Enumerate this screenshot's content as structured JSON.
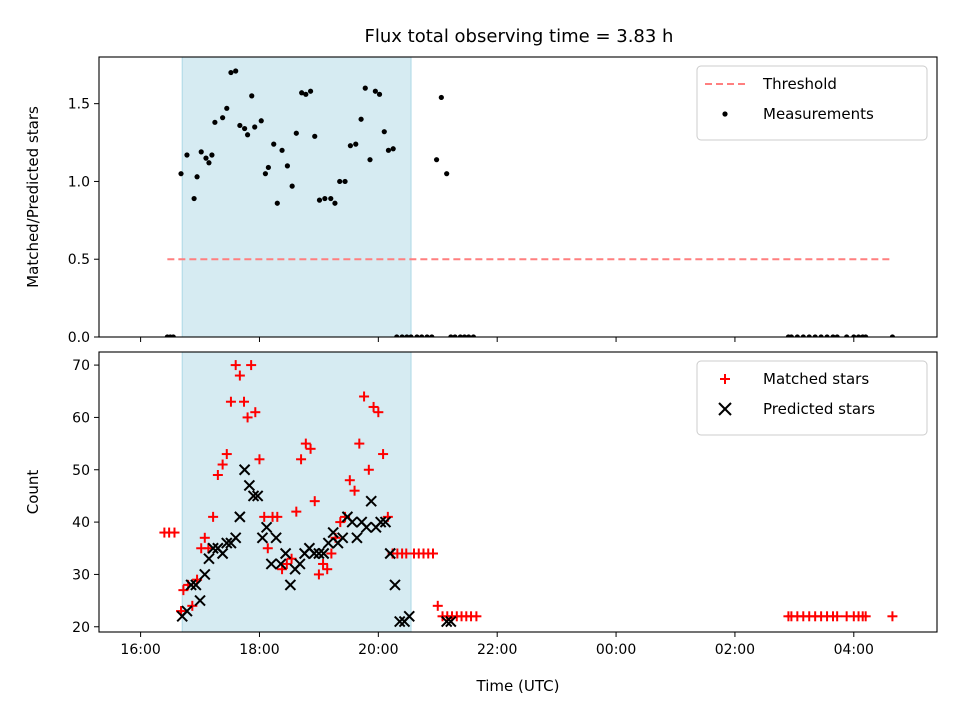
{
  "chart_data": [
    {
      "type": "scatter",
      "title": "Flux total observing time = 3.83 h",
      "xlabel": "",
      "ylabel": "Matched/Predicted stars",
      "xlim": [
        15.3,
        29.4
      ],
      "ylim": [
        0.0,
        1.8
      ],
      "xticks": [
        16,
        18,
        20,
        22,
        24,
        26,
        28
      ],
      "xtick_labels": [],
      "yticks": [
        0.0,
        0.5,
        1.0,
        1.5
      ],
      "ytick_labels": [
        "0.0",
        "0.5",
        "1.0",
        "1.5"
      ],
      "shaded_span": [
        16.7,
        20.55
      ],
      "legend_position": "top-right",
      "threshold": {
        "name": "Threshold",
        "value": 0.5,
        "x": [
          16.45,
          28.6
        ],
        "color": "#ff7f7f"
      },
      "series": [
        {
          "name": "Measurements",
          "color": "#000000",
          "marker": "dot",
          "x": [
            16.45,
            16.5,
            16.55,
            16.68,
            16.78,
            16.9,
            16.95,
            17.02,
            17.1,
            17.15,
            17.2,
            17.25,
            17.38,
            17.45,
            17.52,
            17.6,
            17.67,
            17.75,
            17.8,
            17.87,
            17.92,
            18.03,
            18.1,
            18.15,
            18.24,
            18.3,
            18.38,
            18.47,
            18.55,
            18.62,
            18.71,
            18.78,
            18.86,
            18.93,
            19.01,
            19.1,
            19.2,
            19.27,
            19.35,
            19.44,
            19.53,
            19.62,
            19.71,
            19.78,
            19.86,
            19.95,
            20.02,
            20.1,
            20.17,
            20.25,
            20.31,
            20.4,
            20.48,
            20.55,
            20.65,
            20.73,
            20.82,
            20.9,
            20.98,
            21.06,
            21.15,
            21.22,
            21.29,
            21.38,
            21.45,
            21.52,
            21.6,
            26.9,
            26.95,
            27.05,
            27.15,
            27.25,
            27.35,
            27.45,
            27.55,
            27.65,
            27.72,
            27.88,
            28.0,
            28.08,
            28.15,
            28.2,
            28.65
          ],
          "y": [
            0.0,
            0.0,
            0.0,
            1.05,
            1.17,
            0.89,
            1.03,
            1.19,
            1.15,
            1.12,
            1.17,
            1.38,
            1.41,
            1.47,
            1.7,
            1.71,
            1.36,
            1.34,
            1.3,
            1.55,
            1.35,
            1.39,
            1.05,
            1.09,
            1.24,
            0.86,
            1.2,
            1.1,
            0.97,
            1.31,
            1.57,
            1.56,
            1.58,
            1.29,
            0.88,
            0.89,
            0.89,
            0.86,
            1.0,
            1.0,
            1.23,
            1.24,
            1.4,
            1.6,
            1.14,
            1.58,
            1.56,
            1.32,
            1.2,
            1.21,
            0.0,
            0.0,
            0.0,
            0.0,
            0.0,
            0.0,
            0.0,
            0.0,
            1.14,
            1.54,
            1.05,
            0.0,
            0.0,
            0.0,
            0.0,
            0.0,
            0.0,
            0.0,
            0.0,
            0.0,
            0.0,
            0.0,
            0.0,
            0.0,
            0.0,
            0.0,
            0.0,
            0.0,
            0.0,
            0.0,
            0.0,
            0.0,
            0.0
          ]
        }
      ]
    },
    {
      "type": "scatter",
      "title": "",
      "xlabel": "Time (UTC)",
      "ylabel": "Count",
      "xlim": [
        15.3,
        29.4
      ],
      "ylim": [
        19.0,
        72.5
      ],
      "xticks": [
        16,
        18,
        20,
        22,
        24,
        26,
        28
      ],
      "xtick_labels": [
        "16:00",
        "18:00",
        "20:00",
        "22:00",
        "00:00",
        "02:00",
        "04:00"
      ],
      "yticks": [
        20,
        30,
        40,
        50,
        60,
        70
      ],
      "ytick_labels": [
        "20",
        "30",
        "40",
        "50",
        "60",
        "70"
      ],
      "shaded_span": [
        16.7,
        20.55
      ],
      "legend_position": "top-right",
      "series": [
        {
          "name": "Matched stars",
          "color": "#ff0000",
          "marker": "plus",
          "x": [
            16.4,
            16.48,
            16.57,
            16.68,
            16.72,
            16.8,
            16.87,
            16.95,
            17.02,
            17.08,
            17.14,
            17.22,
            17.3,
            17.38,
            17.45,
            17.52,
            17.6,
            17.67,
            17.74,
            17.8,
            17.86,
            17.93,
            18.0,
            18.08,
            18.14,
            18.22,
            18.3,
            18.38,
            18.46,
            18.54,
            18.62,
            18.7,
            18.78,
            18.86,
            18.93,
            19.0,
            19.07,
            19.14,
            19.21,
            19.28,
            19.36,
            19.44,
            19.52,
            19.6,
            19.68,
            19.76,
            19.84,
            19.92,
            20.0,
            20.08,
            20.16,
            20.24,
            20.32,
            20.4,
            20.47,
            20.6,
            20.68,
            20.76,
            20.84,
            20.92,
            21.0,
            21.08,
            21.16,
            21.24,
            21.32,
            21.4,
            21.48,
            21.56,
            21.65,
            26.9,
            26.95,
            27.05,
            27.15,
            27.25,
            27.35,
            27.45,
            27.55,
            27.65,
            27.72,
            27.88,
            28.0,
            28.08,
            28.15,
            28.2,
            28.65
          ],
          "y": [
            38,
            38,
            38,
            23,
            27,
            28,
            24,
            29,
            35,
            37,
            35,
            41,
            49,
            51,
            53,
            63,
            70,
            68,
            63,
            60,
            70,
            61,
            52,
            41,
            35,
            41,
            41,
            31,
            32,
            33,
            42,
            52,
            55,
            54,
            44,
            30,
            32,
            31,
            34,
            37,
            40,
            41,
            48,
            46,
            55,
            64,
            50,
            62,
            61,
            53,
            41,
            34,
            34,
            34,
            34,
            34,
            34,
            34,
            34,
            34,
            24,
            22,
            22,
            22,
            22,
            22,
            22,
            22,
            22,
            22,
            22,
            22,
            22,
            22,
            22,
            22,
            22,
            22,
            22,
            22,
            22,
            22,
            22,
            22,
            22
          ]
        },
        {
          "name": "Predicted stars",
          "color": "#000000",
          "marker": "cross",
          "x": [
            16.7,
            16.78,
            16.85,
            16.93,
            17.0,
            17.08,
            17.15,
            17.22,
            17.3,
            17.38,
            17.45,
            17.52,
            17.6,
            17.67,
            17.75,
            17.83,
            17.9,
            17.97,
            18.05,
            18.12,
            18.2,
            18.28,
            18.36,
            18.44,
            18.52,
            18.6,
            18.68,
            18.76,
            18.84,
            18.92,
            19.0,
            19.08,
            19.16,
            19.24,
            19.32,
            19.4,
            19.48,
            19.56,
            19.64,
            19.72,
            19.8,
            19.88,
            19.96,
            20.04,
            20.12,
            20.2,
            20.28,
            20.36,
            20.44,
            20.52,
            21.15,
            21.22
          ],
          "y": [
            22,
            23,
            28,
            28,
            25,
            30,
            33,
            35,
            35,
            34,
            36,
            36,
            37,
            41,
            50,
            47,
            45,
            45,
            37,
            39,
            32,
            37,
            32,
            34,
            28,
            31,
            32,
            34,
            35,
            34,
            34,
            34,
            36,
            38,
            36,
            37,
            41,
            40,
            37,
            40,
            39,
            44,
            39,
            40,
            40,
            34,
            28,
            21,
            21,
            22,
            21,
            21
          ]
        }
      ]
    }
  ]
}
